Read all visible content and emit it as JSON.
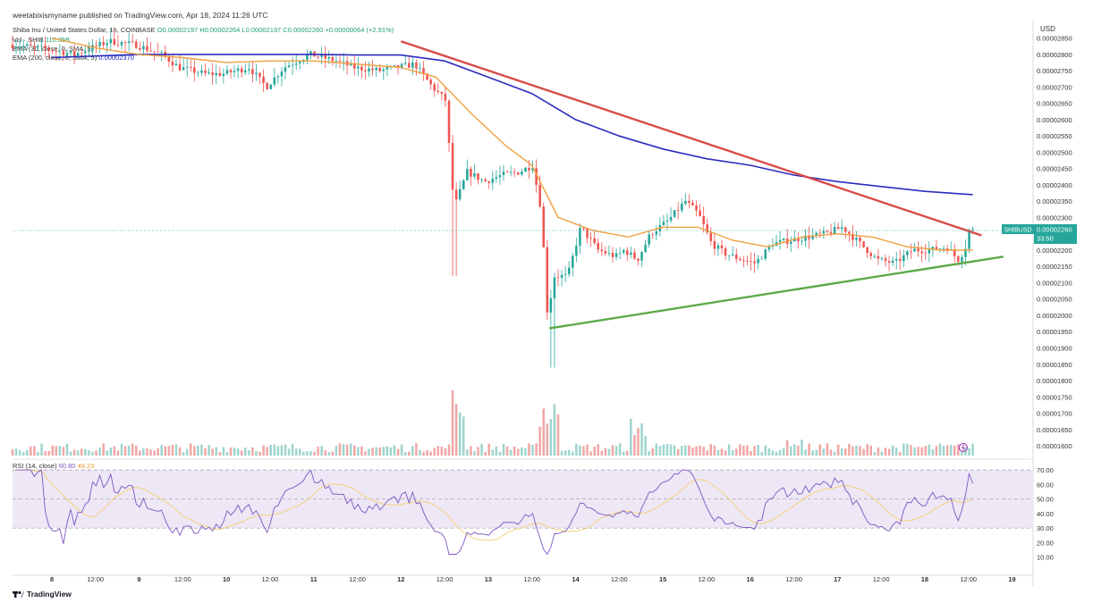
{
  "header": {
    "published": "weetabixismyname published on TradingView.com, Apr 18, 2024 11:26 UTC"
  },
  "legend": {
    "symbol_line": "Shiba Inu / United States Dollar, 1h, COINBASE",
    "ohlc": "O0.00002197 H0.00002264 L0.00002197 C0.00002260 +0.00000064 (+2.91%)",
    "vol_label": "Vol · SHIB",
    "vol_value": "110.35B",
    "ema30_label": "EMA (30, close, 0, SMA, 5)",
    "ema200_label": "EMA (200, close, 0, SMA, 5)",
    "ema200_value": "0.00002370",
    "rsi_label": "RSI (14, close)",
    "rsi_value": "60.80",
    "rsi_ma_value": "49.23"
  },
  "price_axis": {
    "currency": "USD",
    "last_price_tag": "SHIBUSD",
    "last_price": "0.00002260",
    "countdown": "33:50"
  },
  "brand": "TradingView",
  "colors": {
    "up": "#26a69a",
    "down": "#ef5350",
    "ema30": "#f0a040",
    "ema200": "#2c2cc0",
    "resistance": "#d84b4b",
    "support": "#5ca94a",
    "rsi": "#7e57c2"
  },
  "chart_data": [
    {
      "type": "candlestick",
      "title": "Shiba Inu / United States Dollar, 1h, COINBASE",
      "y_unit": "USD",
      "ylim": [
        1.57e-05,
        2.89e-05
      ],
      "y_ticks": [
        "0.00002850",
        "0.00002800",
        "0.00002750",
        "0.00002700",
        "0.00002650",
        "0.00002600",
        "0.00002550",
        "0.00002500",
        "0.00002450",
        "0.00002400",
        "0.00002350",
        "0.00002300",
        "0.00002250",
        "0.00002200",
        "0.00002150",
        "0.00002100",
        "0.00002050",
        "0.00002000",
        "0.00001950",
        "0.00001900",
        "0.00001850",
        "0.00001800",
        "0.00001750",
        "0.00001700",
        "0.00001650",
        "0.00001600"
      ],
      "x_ticks": [
        "8",
        "12:00",
        "9",
        "12:00",
        "10",
        "12:00",
        "11",
        "12:00",
        "12",
        "12:00",
        "13",
        "12:00",
        "14",
        "12:00",
        "15",
        "12:00",
        "16",
        "12:00",
        "17",
        "12:00",
        "18",
        "12:00",
        "19"
      ],
      "ema30": [
        [
          8.0,
          2.85e-05
        ],
        [
          8.5,
          2.82e-05
        ],
        [
          9.0,
          2.8e-05
        ],
        [
          9.5,
          2.79e-05
        ],
        [
          10.0,
          2.775e-05
        ],
        [
          10.5,
          2.78e-05
        ],
        [
          11.0,
          2.78e-05
        ],
        [
          11.5,
          2.77e-05
        ],
        [
          12.0,
          2.76e-05
        ],
        [
          12.4,
          2.73e-05
        ],
        [
          12.8,
          2.62e-05
        ],
        [
          13.2,
          2.52e-05
        ],
        [
          13.5,
          2.46e-05
        ],
        [
          13.8,
          2.3e-05
        ],
        [
          14.2,
          2.26e-05
        ],
        [
          14.6,
          2.24e-05
        ],
        [
          15.0,
          2.27e-05
        ],
        [
          15.4,
          2.27e-05
        ],
        [
          15.8,
          2.23e-05
        ],
        [
          16.2,
          2.21e-05
        ],
        [
          16.6,
          2.24e-05
        ],
        [
          17.0,
          2.25e-05
        ],
        [
          17.4,
          2.24e-05
        ],
        [
          17.8,
          2.21e-05
        ],
        [
          18.2,
          2.2e-05
        ],
        [
          18.55,
          2.2e-05
        ]
      ],
      "ema200": [
        [
          8.0,
          2.79e-05
        ],
        [
          8.5,
          2.795e-05
        ],
        [
          9.0,
          2.8e-05
        ],
        [
          9.5,
          2.8e-05
        ],
        [
          10.0,
          2.8e-05
        ],
        [
          10.5,
          2.8e-05
        ],
        [
          11.0,
          2.8e-05
        ],
        [
          11.5,
          2.798e-05
        ],
        [
          12.0,
          2.798e-05
        ],
        [
          12.5,
          2.78e-05
        ],
        [
          13.0,
          2.73e-05
        ],
        [
          13.5,
          2.68e-05
        ],
        [
          14.0,
          2.6e-05
        ],
        [
          14.5,
          2.55e-05
        ],
        [
          15.0,
          2.51e-05
        ],
        [
          15.5,
          2.48e-05
        ],
        [
          16.0,
          2.46e-05
        ],
        [
          16.5,
          2.43e-05
        ],
        [
          17.0,
          2.41e-05
        ],
        [
          17.5,
          2.395e-05
        ],
        [
          18.0,
          2.38e-05
        ],
        [
          18.55,
          2.37e-05
        ]
      ],
      "annotations": [
        {
          "name": "descending-resistance",
          "from": [
            12.0,
            2.84e-05
          ],
          "to": [
            18.65,
            2.245e-05
          ]
        },
        {
          "name": "ascending-support",
          "from": [
            13.7,
            1.96e-05
          ],
          "to": [
            18.9,
            2.18e-05
          ]
        }
      ],
      "highlights": {
        "lowest_wick": 1.84e-05,
        "session_high": 2.88e-05
      }
    },
    {
      "type": "bar",
      "title": "Vol · SHIB",
      "last_value": "110.35B"
    },
    {
      "type": "line",
      "title": "RSI (14, close)",
      "ylim": [
        0,
        75
      ],
      "y_ticks": [
        "70.00",
        "60.00",
        "50.00",
        "40.00",
        "30.00",
        "20.00",
        "10.00"
      ],
      "band": [
        30,
        70
      ],
      "midline": 50,
      "last_value": 60.8,
      "ma_last_value": 49.23
    }
  ]
}
